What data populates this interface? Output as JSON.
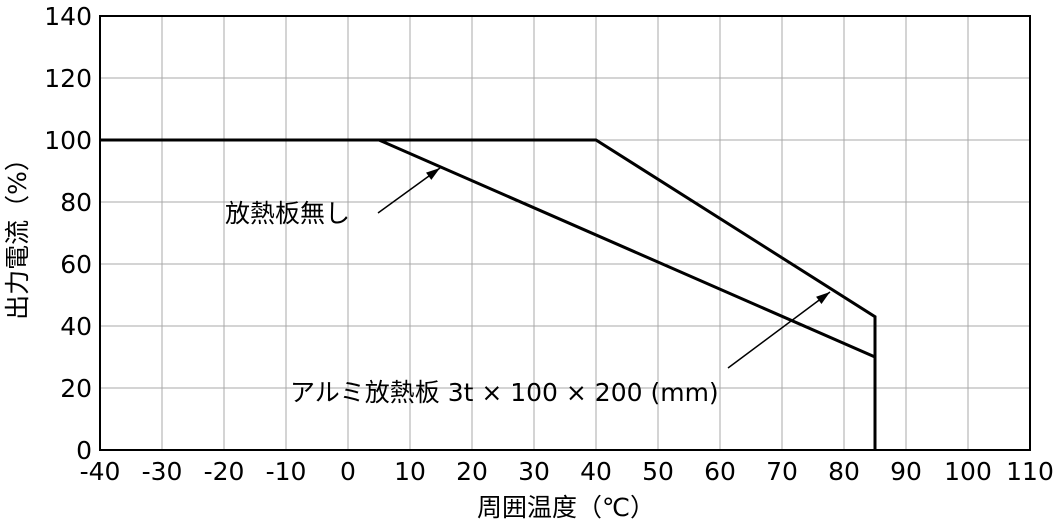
{
  "chart_data": {
    "type": "line",
    "xlabel": "周囲温度（℃）",
    "ylabel": "出力電流（%）",
    "xlim": [
      -40,
      110
    ],
    "ylim": [
      0,
      140
    ],
    "x_ticks": [
      -40,
      -30,
      -20,
      -10,
      0,
      10,
      20,
      30,
      40,
      50,
      60,
      70,
      80,
      90,
      100,
      110
    ],
    "y_ticks": [
      0,
      20,
      40,
      60,
      80,
      100,
      120,
      140
    ],
    "x_tick_labels": [
      "-40",
      "-30",
      "-20",
      "-10",
      "0",
      "10",
      "20",
      "30",
      "40",
      "50",
      "60",
      "70",
      "80",
      "90",
      "100",
      "110"
    ],
    "y_tick_labels": [
      "0",
      "20",
      "40",
      "60",
      "80",
      "100",
      "120",
      "140"
    ],
    "grid": true,
    "series": [
      {
        "name": "放熱板無し",
        "points": [
          [
            -40,
            100
          ],
          [
            5,
            100
          ],
          [
            85,
            30
          ],
          [
            85,
            0
          ]
        ]
      },
      {
        "name": "アルミ放熱板 3t × 100 × 200 (mm)",
        "points": [
          [
            -40,
            100
          ],
          [
            40,
            100
          ],
          [
            85,
            43
          ],
          [
            85,
            0
          ]
        ]
      }
    ],
    "annotations": [
      {
        "text": "放熱板無し",
        "text_anchor": [
          -20,
          76
        ],
        "arrow_from": [
          -35,
          81
        ],
        "arrow_to": [
          14,
          91
        ],
        "series": 0
      },
      {
        "text": "アルミ放熱板 3t × 100 × 200 (mm)",
        "text_anchor": [
          -32,
          17
        ],
        "arrow_from": [
          63,
          28
        ],
        "arrow_to": [
          78,
          51
        ],
        "series": 1
      }
    ]
  }
}
